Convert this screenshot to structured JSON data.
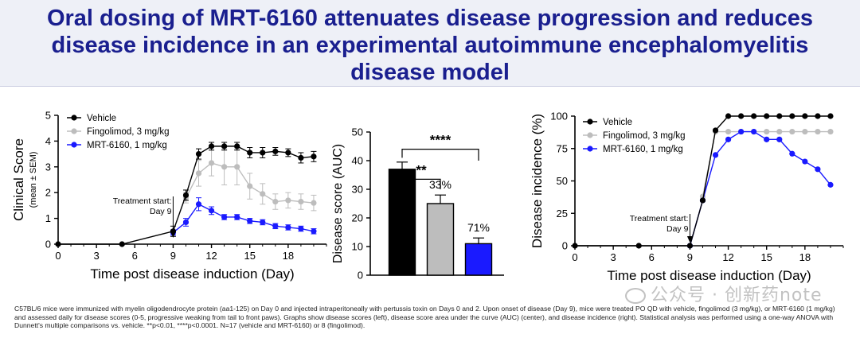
{
  "title": "Oral dosing of MRT-6160 attenuates disease progression and reduces disease incidence in an experimental autoimmune encephalomyelitis disease model",
  "colors": {
    "title": "#1a1f8f",
    "vehicle": "#000000",
    "fingolimod": "#bdbdbd",
    "mrt": "#1a1aff"
  },
  "caption": "C57BL/6 mice were immunized with myelin oligodendrocyte protein (aa1-125) on Day 0 and injected intraperitoneally with pertussis toxin on Days 0 and 2. Upon onset of disease (Day 9), mice were treated PO QD with vehicle, fingolimod (3 mg/kg), or MRT-6160 (1 mg/kg) and assessed daily for disease scores (0-5, progressive weaking from tail to front paws). Graphs show disease scores (left), disease score area under the curve (AUC) (center), and disease incidence (right). Statistical analysis was performed using a one-way ANOVA with Dunnett's multiple comparisons vs. vehicle. **p<0.01, ****p<0.0001. N=17 (vehicle and MRT-6160) or 8 (fingolimod).",
  "watermark": "公众号 · 创新药note",
  "chart_data": [
    {
      "type": "line",
      "xlabel": "Time post disease induction (Day)",
      "ylabel": "Clinical Score",
      "ylabel2": "(mean ± SEM)",
      "xlim": [
        0,
        21
      ],
      "ylim": [
        0,
        5
      ],
      "xticks": [
        0,
        3,
        6,
        9,
        12,
        15,
        18
      ],
      "yticks": [
        0,
        1,
        2,
        3,
        4,
        5
      ],
      "annotation": {
        "lines": [
          "Treatment start:",
          "Day 9"
        ],
        "x": 9
      },
      "legend": [
        "Vehicle",
        "Fingolimod, 3 mg/kg",
        "MRT-6160, 1 mg/kg"
      ],
      "series": [
        {
          "name": "Vehicle",
          "color": "#000000",
          "x": [
            0,
            5,
            9,
            10,
            11,
            12,
            13,
            14,
            15,
            16,
            17,
            18,
            19,
            20
          ],
          "y": [
            0,
            0,
            0.5,
            1.9,
            3.5,
            3.8,
            3.8,
            3.8,
            3.55,
            3.55,
            3.6,
            3.55,
            3.35,
            3.4
          ],
          "err": [
            0,
            0,
            0.2,
            0.2,
            0.2,
            0.15,
            0.15,
            0.15,
            0.2,
            0.2,
            0.15,
            0.15,
            0.2,
            0.2
          ]
        },
        {
          "name": "Fingolimod, 3 mg/kg",
          "color": "#bdbdbd",
          "x": [
            10,
            11,
            12,
            13,
            14,
            15,
            16,
            17,
            18,
            19,
            20
          ],
          "y": [
            1.8,
            2.75,
            3.15,
            3.0,
            3.0,
            2.25,
            1.95,
            1.65,
            1.7,
            1.65,
            1.6
          ],
          "err": [
            0.2,
            0.5,
            0.5,
            0.7,
            0.7,
            0.5,
            0.4,
            0.3,
            0.3,
            0.3,
            0.3
          ]
        },
        {
          "name": "MRT-6160, 1 mg/kg",
          "color": "#1a1aff",
          "x": [
            9,
            10,
            11,
            12,
            13,
            14,
            15,
            16,
            17,
            18,
            19,
            20
          ],
          "y": [
            0.45,
            0.85,
            1.55,
            1.3,
            1.05,
            1.05,
            0.9,
            0.85,
            0.7,
            0.65,
            0.6,
            0.5
          ],
          "err": [
            0.1,
            0.15,
            0.25,
            0.15,
            0.1,
            0.1,
            0.1,
            0.1,
            0.1,
            0.1,
            0.1,
            0.1
          ]
        }
      ]
    },
    {
      "type": "bar",
      "ylabel": "Disease score (AUC)",
      "ylim": [
        0,
        50
      ],
      "yticks": [
        0,
        10,
        20,
        30,
        40,
        50
      ],
      "categories": [
        "Vehicle",
        "Fingolimod, 3 mg/kg",
        "MRT-6160, 1 mg/kg"
      ],
      "values": [
        37,
        25,
        11
      ],
      "err": [
        2.5,
        3,
        2
      ],
      "colors": [
        "#000000",
        "#bdbdbd",
        "#1a1aff"
      ],
      "labels": [
        "",
        "33%",
        "71%"
      ],
      "significance": [
        {
          "from": 0,
          "to": 1,
          "label": "**"
        },
        {
          "from": 0,
          "to": 2,
          "label": "****"
        }
      ]
    },
    {
      "type": "line",
      "xlabel": "Time post disease induction (Day)",
      "ylabel": "Disease incidence (%)",
      "xlim": [
        0,
        21
      ],
      "ylim": [
        0,
        100
      ],
      "xticks": [
        0,
        3,
        6,
        9,
        12,
        15,
        18
      ],
      "yticks": [
        0,
        25,
        50,
        75,
        100
      ],
      "annotation": {
        "lines": [
          "Treatment start:",
          "Day 9"
        ],
        "x": 9
      },
      "legend": [
        "Vehicle",
        "Fingolimod, 3 mg/kg",
        "MRT-6160, 1 mg/kg"
      ],
      "series": [
        {
          "name": "Vehicle",
          "color": "#000000",
          "x": [
            0,
            5,
            9,
            10,
            11,
            12,
            13,
            14,
            15,
            16,
            17,
            18,
            19,
            20
          ],
          "y": [
            0,
            0,
            0,
            35,
            89,
            100,
            100,
            100,
            100,
            100,
            100,
            100,
            100,
            100
          ]
        },
        {
          "name": "Fingolimod, 3 mg/kg",
          "color": "#bdbdbd",
          "x": [
            10,
            11,
            12,
            13,
            14,
            15,
            16,
            17,
            18,
            19,
            20
          ],
          "y": [
            38,
            88,
            88,
            88,
            88,
            88,
            88,
            88,
            88,
            88,
            88
          ]
        },
        {
          "name": "MRT-6160, 1 mg/kg",
          "color": "#1a1aff",
          "x": [
            9,
            10,
            11,
            12,
            13,
            14,
            15,
            16,
            17,
            18,
            19,
            20
          ],
          "y": [
            0,
            35,
            70,
            82,
            88,
            88,
            82,
            82,
            71,
            65,
            59,
            47
          ]
        }
      ]
    }
  ]
}
